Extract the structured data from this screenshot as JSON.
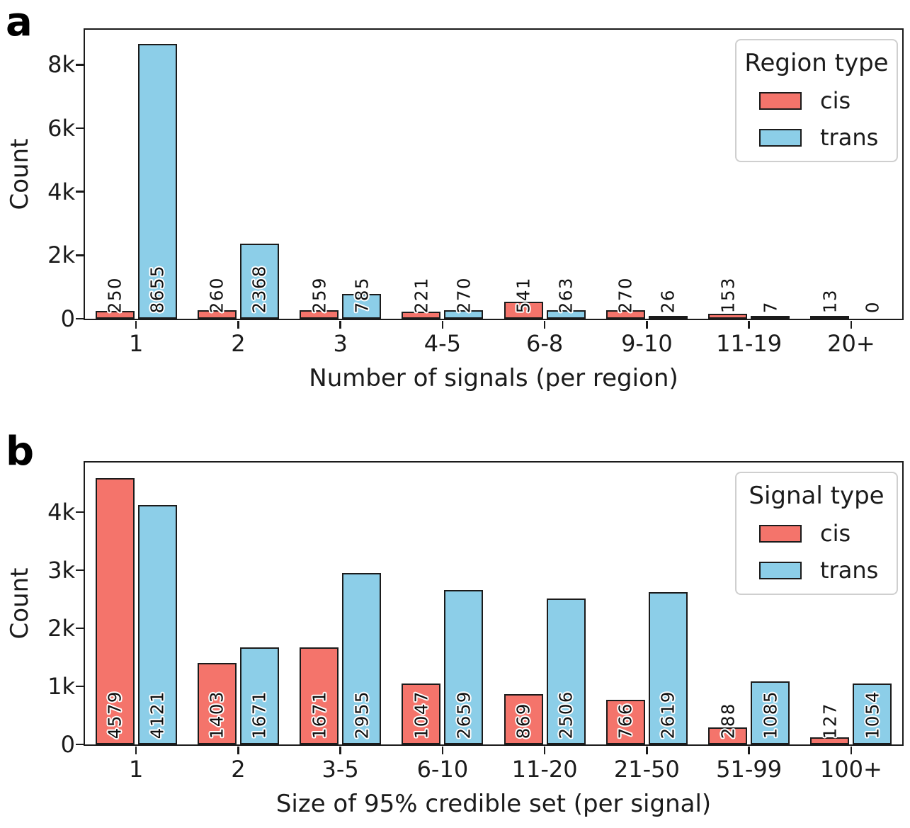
{
  "chart_data": [
    {
      "type": "bar",
      "panel_letter": "a",
      "title": "",
      "xlabel": "Number of signals (per region)",
      "ylabel": "Count",
      "legend_title": "Region type",
      "legend_position": "upper right",
      "grid": false,
      "bar_value_labels": true,
      "value_label_rotation": 90,
      "categories": [
        "1",
        "2",
        "3",
        "4-5",
        "6-8",
        "9-10",
        "11-19",
        "20+"
      ],
      "series": [
        {
          "name": "cis",
          "color": "#f4746b",
          "values": [
            250,
            260,
            259,
            221,
            541,
            270,
            153,
            13
          ]
        },
        {
          "name": "trans",
          "color": "#8ccee8",
          "values": [
            8655,
            2368,
            785,
            270,
            263,
            26,
            7,
            0
          ]
        }
      ],
      "ylim": [
        0,
        9100
      ],
      "yticks": [
        {
          "v": 0,
          "label": "0"
        },
        {
          "v": 2000,
          "label": "2k"
        },
        {
          "v": 4000,
          "label": "4k"
        },
        {
          "v": 6000,
          "label": "6k"
        },
        {
          "v": 8000,
          "label": "8k"
        }
      ]
    },
    {
      "type": "bar",
      "panel_letter": "b",
      "title": "",
      "xlabel": "Size of 95% credible set (per signal)",
      "ylabel": "Count",
      "legend_title": "Signal type",
      "legend_position": "upper right",
      "grid": false,
      "bar_value_labels": true,
      "value_label_rotation": 90,
      "categories": [
        "1",
        "2",
        "3-5",
        "6-10",
        "11-20",
        "21-50",
        "51-99",
        "100+"
      ],
      "series": [
        {
          "name": "cis",
          "color": "#f4746b",
          "values": [
            4579,
            1403,
            1671,
            1047,
            869,
            766,
            288,
            127
          ]
        },
        {
          "name": "trans",
          "color": "#8ccee8",
          "values": [
            4121,
            1671,
            2955,
            2659,
            2506,
            2619,
            1085,
            1054
          ]
        }
      ],
      "ylim": [
        0,
        4850
      ],
      "yticks": [
        {
          "v": 0,
          "label": "0"
        },
        {
          "v": 1000,
          "label": "1k"
        },
        {
          "v": 2000,
          "label": "2k"
        },
        {
          "v": 3000,
          "label": "3k"
        },
        {
          "v": 4000,
          "label": "4k"
        }
      ]
    }
  ],
  "style": {
    "bar_edge_color": "#1b1b1b",
    "axis_color": "#1b1b1b",
    "legend_border_color": "#cfcfcf",
    "background": "#ffffff"
  }
}
